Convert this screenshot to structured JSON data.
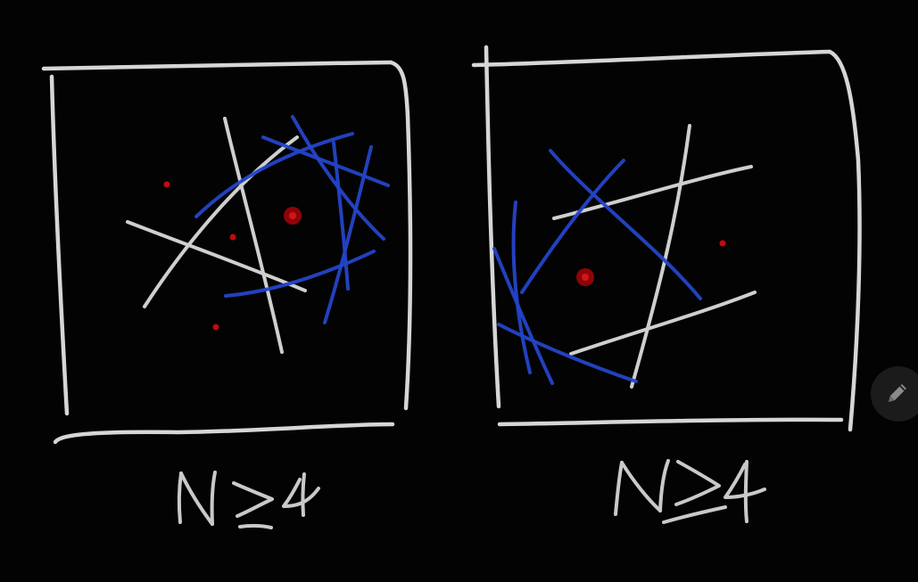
{
  "canvas": {
    "background": "#030303",
    "ink_white": "#cfcfcf",
    "ink_blue": "#2444c8",
    "ink_red": "#b3060d"
  },
  "panels": [
    {
      "caption": "N≥4"
    },
    {
      "caption": "N≥4"
    }
  ],
  "toolbar": {
    "pencil_icon": "pencil-icon"
  }
}
